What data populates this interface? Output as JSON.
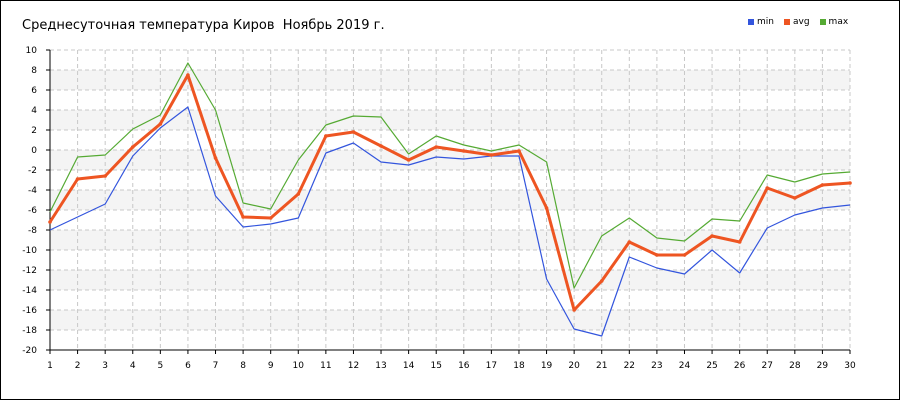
{
  "chart_data": {
    "type": "line",
    "title": "Среднесуточная температура Киров  Ноябрь 2019 г.",
    "x": [
      1,
      2,
      3,
      4,
      5,
      6,
      7,
      8,
      9,
      10,
      11,
      12,
      13,
      14,
      15,
      16,
      17,
      18,
      19,
      20,
      21,
      22,
      23,
      24,
      25,
      26,
      27,
      28,
      29,
      30
    ],
    "ylim": [
      -20,
      10
    ],
    "yticks": [
      10,
      8,
      6,
      4,
      2,
      0,
      -2,
      -4,
      -6,
      -8,
      -10,
      -12,
      -14,
      -16,
      -18,
      -20
    ],
    "grid": true,
    "legend_position": "top-right",
    "series": [
      {
        "name": "min",
        "color": "#3355dd",
        "values": [
          -8.0,
          -6.7,
          -5.4,
          -0.6,
          2.2,
          4.3,
          -4.6,
          -7.7,
          -7.4,
          -6.8,
          -0.3,
          0.7,
          -1.2,
          -1.5,
          -0.7,
          -0.9,
          -0.6,
          -0.6,
          -12.9,
          -17.9,
          -18.6,
          -10.7,
          -11.8,
          -12.4,
          -10.0,
          -12.3,
          -7.8,
          -6.5,
          -5.8,
          -5.5
        ]
      },
      {
        "name": "avg",
        "color": "#ee5522",
        "values": [
          -7.2,
          -2.9,
          -2.6,
          0.3,
          2.6,
          7.5,
          -0.8,
          -6.7,
          -6.8,
          -4.4,
          1.4,
          1.8,
          0.4,
          -1.0,
          0.3,
          -0.1,
          -0.5,
          -0.1,
          -5.8,
          -16.0,
          -13.1,
          -9.2,
          -10.5,
          -10.5,
          -8.6,
          -9.2,
          -3.8,
          -4.8,
          -3.5,
          -3.3
        ]
      },
      {
        "name": "max",
        "color": "#55aa33",
        "values": [
          -6.2,
          -0.7,
          -0.5,
          2.1,
          3.5,
          8.7,
          4.0,
          -5.3,
          -5.9,
          -1.0,
          2.5,
          3.4,
          3.3,
          -0.4,
          1.4,
          0.5,
          -0.1,
          0.5,
          -1.2,
          -13.8,
          -8.6,
          -6.8,
          -8.8,
          -9.1,
          -6.9,
          -7.1,
          -2.5,
          -3.2,
          -2.4,
          -2.2
        ]
      }
    ]
  }
}
